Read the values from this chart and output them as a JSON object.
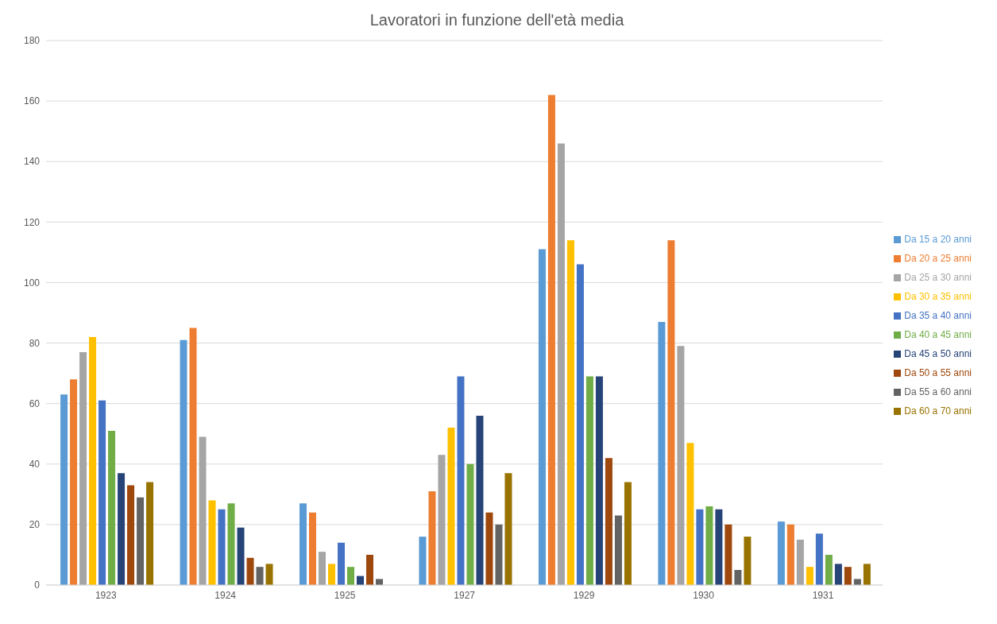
{
  "chart_data": {
    "type": "bar",
    "title": "Lavoratori in funzione dell'età media",
    "categories": [
      "1923",
      "1924",
      "1925",
      "1927",
      "1929",
      "1930",
      "1931"
    ],
    "ylim": [
      0,
      180
    ],
    "yticks": [
      0,
      20,
      40,
      60,
      80,
      100,
      120,
      140,
      160,
      180
    ],
    "grid": "y",
    "legend": "right",
    "series": [
      {
        "name": "Da 15 a 20 anni",
        "color": "#5b9bd5",
        "values": [
          63,
          81,
          27,
          16,
          111,
          87,
          21
        ]
      },
      {
        "name": "Da 20 a 25 anni",
        "color": "#ed7d31",
        "values": [
          68,
          85,
          24,
          31,
          162,
          114,
          20
        ]
      },
      {
        "name": "Da 25 a 30 anni",
        "color": "#a5a5a5",
        "values": [
          77,
          49,
          11,
          43,
          146,
          79,
          15
        ]
      },
      {
        "name": "Da 30 a 35 anni",
        "color": "#ffc000",
        "values": [
          82,
          28,
          7,
          52,
          114,
          47,
          6
        ]
      },
      {
        "name": "Da 35 a 40 anni",
        "color": "#4472c4",
        "values": [
          61,
          25,
          14,
          69,
          106,
          25,
          17
        ]
      },
      {
        "name": "Da 40 a 45 anni",
        "color": "#70ad47",
        "values": [
          51,
          27,
          6,
          40,
          69,
          26,
          10
        ]
      },
      {
        "name": "Da 45 a 50 anni",
        "color": "#264478",
        "values": [
          37,
          19,
          3,
          56,
          69,
          25,
          7
        ]
      },
      {
        "name": "Da 50 a 55 anni",
        "color": "#9e480e",
        "values": [
          33,
          9,
          10,
          24,
          42,
          20,
          6
        ]
      },
      {
        "name": "Da 55 a 60 anni",
        "color": "#636363",
        "values": [
          29,
          6,
          2,
          20,
          23,
          5,
          2
        ]
      },
      {
        "name": "Da 60 a 70 anni",
        "color": "#997300",
        "values": [
          34,
          7,
          0,
          37,
          34,
          16,
          7
        ]
      }
    ]
  }
}
